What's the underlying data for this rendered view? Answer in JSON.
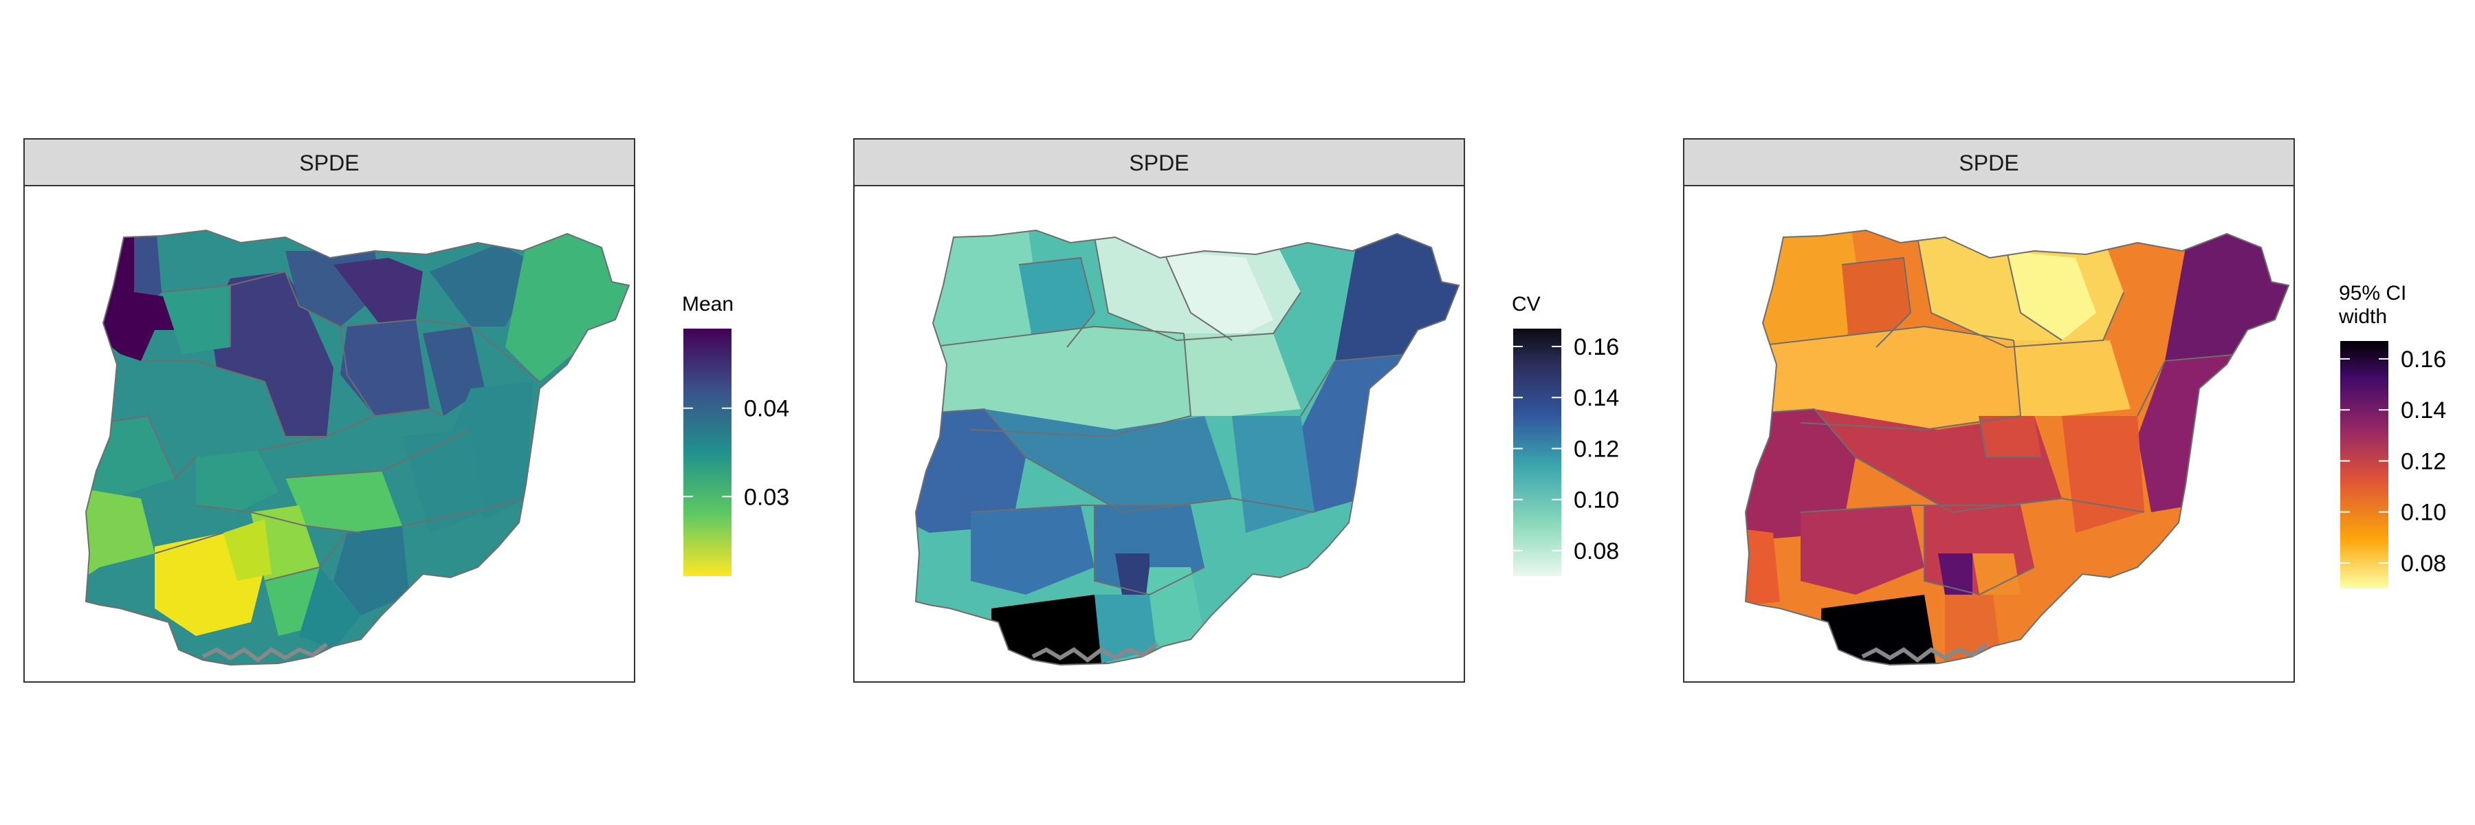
{
  "panels": [
    {
      "strip": "SPDE",
      "legend": {
        "title": [
          "Mean"
        ],
        "ticks": [
          "0.04",
          "0.03"
        ],
        "tick_values": [
          0.04,
          0.03
        ],
        "range": [
          0.021,
          0.049
        ],
        "colors": [
          "#fde725",
          "#5ec962",
          "#21918c",
          "#3b528b",
          "#440154"
        ]
      }
    },
    {
      "strip": "SPDE",
      "legend": {
        "title": [
          "CV"
        ],
        "ticks": [
          "0.16",
          "0.14",
          "0.12",
          "0.10",
          "0.08"
        ],
        "tick_values": [
          0.16,
          0.14,
          0.12,
          0.1,
          0.08
        ],
        "range": [
          0.07,
          0.167
        ],
        "colors": [
          "#eaf8f0",
          "#8fdbbd",
          "#3aa5ad",
          "#33569e",
          "#2d2f5e",
          "#0b0b12"
        ]
      }
    },
    {
      "strip": "SPDE",
      "legend": {
        "title": [
          "95% CI",
          "width"
        ],
        "ticks": [
          "0.16",
          "0.14",
          "0.12",
          "0.10",
          "0.08"
        ],
        "tick_values": [
          0.16,
          0.14,
          0.12,
          0.1,
          0.08
        ],
        "range": [
          0.07,
          0.167
        ],
        "colors": [
          "#fcffa4",
          "#fca50a",
          "#dd513a",
          "#932667",
          "#420a68",
          "#000004"
        ]
      }
    }
  ]
}
